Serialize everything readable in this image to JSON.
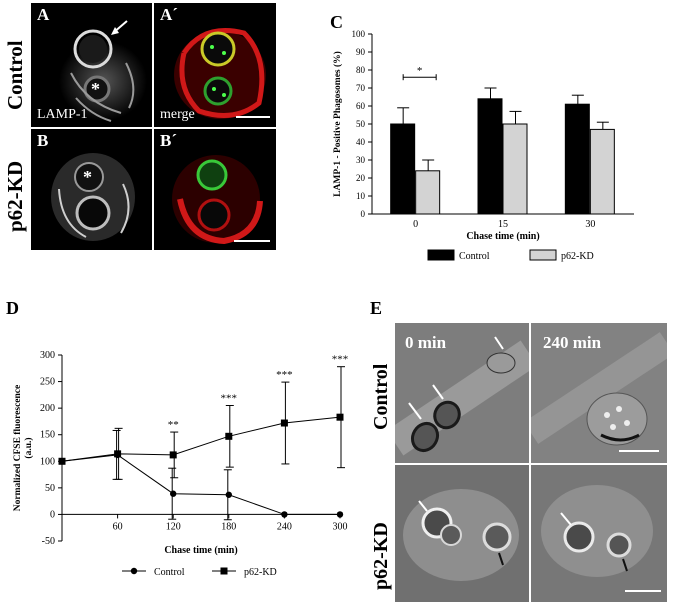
{
  "panels": {
    "A": "A",
    "A_prime": "A´",
    "B": "B",
    "B_prime": "B´",
    "C": "C",
    "D": "D",
    "E": "E"
  },
  "micro": {
    "label_lamp": "LAMP-1",
    "label_merge": "merge",
    "row_control": "Control",
    "row_p62": "p62-KD",
    "time_0": "0 min",
    "time_240": "240 min",
    "asterisk": "*"
  },
  "colors": {
    "control": "#000000",
    "p62kd": "#d3d3d3",
    "lamp_green": "#4cff4c",
    "lamp_red": "#ff2a2a"
  },
  "chart_data": [
    {
      "type": "bar",
      "panel": "C",
      "categories": [
        "0",
        "15",
        "30"
      ],
      "series": [
        {
          "name": "Control",
          "values": [
            50,
            64,
            61
          ],
          "errors": [
            9,
            6,
            5
          ]
        },
        {
          "name": "p62-KD",
          "values": [
            24,
            50,
            47
          ],
          "errors": [
            6,
            7,
            4
          ]
        }
      ],
      "xlabel": "Chase time (min)",
      "ylabel": "LAMP-1 - Positive Phagosomes (%)",
      "ylim": [
        0,
        100
      ],
      "yticks": [
        "0",
        "10",
        "20",
        "30",
        "40",
        "50",
        "60",
        "70",
        "80",
        "90",
        "100"
      ],
      "significance": "*",
      "legend": "bottom"
    },
    {
      "type": "line",
      "panel": "D",
      "x": [
        0,
        60,
        120,
        180,
        240,
        300
      ],
      "xticks": [
        "60",
        "120",
        "180",
        "240",
        "300"
      ],
      "series": [
        {
          "name": "Control",
          "marker": "circle",
          "values": [
            100,
            112,
            39,
            37,
            0,
            0
          ],
          "errors": [
            0,
            46,
            48,
            47,
            0,
            0
          ]
        },
        {
          "name": "p62-KD",
          "marker": "square",
          "values": [
            100,
            114,
            112,
            147,
            172,
            183
          ],
          "errors": [
            0,
            48,
            43,
            58,
            77,
            95
          ]
        }
      ],
      "significance": [
        "",
        "",
        "**",
        "***",
        "***",
        "***"
      ],
      "xlabel": "Chase time (min)",
      "ylabel": "Normalized CFSE fluorescence (a.u.)",
      "ylim": [
        -50,
        300
      ],
      "yticks": [
        "-50",
        "0",
        "50",
        "100",
        "150",
        "200",
        "250",
        "300"
      ],
      "legend": "bottom"
    }
  ]
}
